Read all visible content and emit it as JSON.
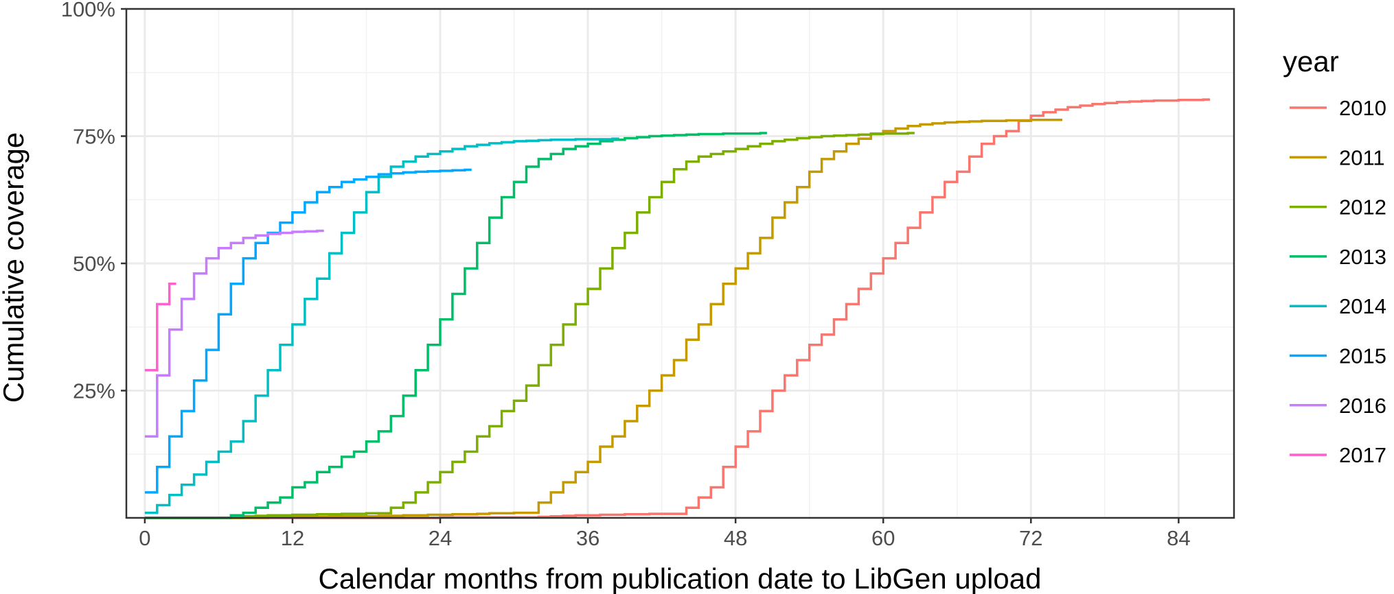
{
  "chart_data": {
    "type": "line",
    "step": true,
    "title": "",
    "xlabel": "Calendar months from publication date to LibGen upload",
    "ylabel": "Cumulative coverage",
    "xlim": [
      -1.5,
      88.5
    ],
    "ylim": [
      0,
      100
    ],
    "x_ticks": [
      0,
      12,
      24,
      36,
      48,
      60,
      72,
      84
    ],
    "x_tick_labels": [
      "0",
      "12",
      "24",
      "36",
      "48",
      "60",
      "72",
      "84"
    ],
    "y_ticks": [
      25,
      50,
      75,
      100
    ],
    "y_tick_labels": [
      "25%",
      "50%",
      "75%",
      "100%"
    ],
    "grid": true,
    "legend": {
      "title": "year",
      "position": "right"
    },
    "series": [
      {
        "name": "2010",
        "color": "#F8766D",
        "start_month": 0,
        "end_month": 87,
        "values": [
          0,
          0,
          0,
          0,
          0,
          0,
          0,
          0,
          0,
          0,
          0,
          0,
          0,
          0,
          0,
          0,
          0,
          0,
          0,
          0,
          0,
          0,
          0,
          0,
          0.1,
          0.1,
          0.1,
          0.1,
          0.1,
          0.1,
          0.1,
          0.1,
          0.2,
          0.3,
          0.4,
          0.5,
          0.5,
          0.6,
          0.6,
          0.7,
          0.7,
          0.8,
          0.8,
          0.8,
          2,
          4,
          6,
          10,
          14,
          17,
          21,
          25,
          28,
          31,
          34,
          36,
          39,
          42,
          45,
          48,
          51,
          54,
          57,
          60,
          63,
          66,
          68,
          71,
          73.5,
          75,
          76,
          78,
          79,
          79.7,
          80.2,
          80.7,
          81,
          81.3,
          81.5,
          81.7,
          81.8,
          81.9,
          82,
          82,
          82.1,
          82.1,
          82.2
        ]
      },
      {
        "name": "2011",
        "color": "#C49A00",
        "start_month": 0,
        "end_month": 75,
        "values": [
          0,
          0,
          0,
          0,
          0,
          0,
          0,
          0,
          0,
          0,
          0.1,
          0.1,
          0.2,
          0.2,
          0.2,
          0.3,
          0.3,
          0.3,
          0.3,
          0.4,
          0.4,
          0.5,
          0.5,
          0.6,
          0.6,
          0.7,
          0.7,
          0.8,
          0.9,
          0.9,
          1,
          1,
          3,
          5,
          7,
          9,
          11,
          14,
          16,
          19,
          22,
          25,
          28,
          31,
          35,
          38,
          42,
          46,
          49,
          52,
          55,
          59,
          62,
          65,
          68,
          70.5,
          72,
          73.5,
          74.5,
          75.5,
          76,
          76.5,
          77,
          77.3,
          77.5,
          77.7,
          77.8,
          77.9,
          78,
          78,
          78.1,
          78.1,
          78.2,
          78.2,
          78.2
        ]
      },
      {
        "name": "2012",
        "color": "#7CAE00",
        "start_month": 0,
        "end_month": 63,
        "values": [
          0,
          0,
          0,
          0,
          0,
          0,
          0,
          0,
          0.3,
          0.4,
          0.5,
          0.5,
          0.6,
          0.6,
          0.7,
          0.7,
          0.8,
          0.8,
          0.9,
          0.9,
          2,
          3,
          5,
          7,
          9,
          11,
          13,
          16,
          18,
          21,
          23,
          26,
          30,
          34,
          38,
          42,
          45,
          49,
          53,
          56,
          60,
          63,
          66,
          68.5,
          70,
          71,
          71.5,
          72,
          72.5,
          73,
          73.5,
          74,
          74.3,
          74.6,
          74.8,
          75,
          75.1,
          75.2,
          75.3,
          75.4,
          75.5,
          75.5,
          75.6
        ]
      },
      {
        "name": "2013",
        "color": "#00BE67",
        "start_month": 0,
        "end_month": 51,
        "values": [
          0,
          0,
          0,
          0,
          0,
          0,
          0,
          0.5,
          1,
          2,
          3,
          4,
          6,
          7,
          9,
          10,
          12,
          13,
          15,
          17,
          20,
          24,
          29,
          34,
          39,
          44,
          49,
          54,
          59,
          63,
          66,
          69,
          70.5,
          71.5,
          72.5,
          73,
          73.5,
          74,
          74.3,
          74.6,
          74.8,
          75,
          75.1,
          75.2,
          75.3,
          75.4,
          75.4,
          75.5,
          75.5,
          75.5,
          75.6
        ]
      },
      {
        "name": "2014",
        "color": "#00BFC4",
        "start_month": 0,
        "end_month": 39,
        "values": [
          1,
          2.5,
          4.5,
          6.5,
          8.5,
          11,
          13,
          15,
          19,
          24,
          29,
          34,
          38,
          43,
          47,
          52,
          56,
          60,
          64,
          67,
          69,
          70,
          71,
          71.5,
          72,
          72.5,
          73,
          73.3,
          73.6,
          73.8,
          74,
          74.1,
          74.2,
          74.3,
          74.3,
          74.4,
          74.4,
          74.4,
          74.5
        ]
      },
      {
        "name": "2015",
        "color": "#00A9FF",
        "start_month": 0,
        "end_month": 27,
        "values": [
          5,
          10,
          16,
          21,
          27,
          33,
          40,
          46,
          51,
          54,
          56,
          58,
          60,
          62,
          64,
          65,
          66,
          66.5,
          67,
          67.5,
          67.7,
          67.9,
          68,
          68.1,
          68.2,
          68.3,
          68.4
        ]
      },
      {
        "name": "2016",
        "color": "#C77CFF",
        "start_month": 0,
        "end_month": 15,
        "values": [
          16,
          28,
          37,
          43,
          48,
          51,
          53,
          54,
          55,
          55.5,
          55.8,
          56,
          56.2,
          56.3,
          56.4
        ]
      },
      {
        "name": "2017",
        "color": "#FF61CC",
        "start_month": 0,
        "end_month": 2,
        "values": [
          29,
          42,
          46
        ]
      }
    ]
  }
}
